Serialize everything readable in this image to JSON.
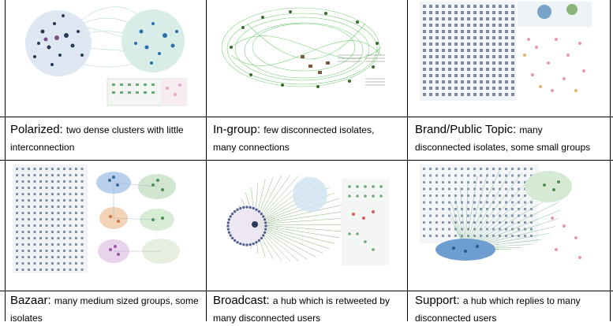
{
  "panels": [
    {
      "id": "polarized",
      "label": "Polarized:",
      "line1": "two dense clusters with little",
      "line2": "interconnection"
    },
    {
      "id": "in-group",
      "label": "In-group:",
      "line1": "few disconnected isolates,",
      "line2": "many connections"
    },
    {
      "id": "brand",
      "label": "Brand/Public Topic:",
      "line1": "many",
      "line2": "disconnected isolates, some small groups"
    },
    {
      "id": "bazaar",
      "label": "Bazaar:",
      "line1": "many medium sized groups, some",
      "line2": "isolates"
    },
    {
      "id": "broadcast",
      "label": "Broadcast:",
      "line1": "a hub which is retweeted by",
      "line2": "many disconnected users"
    },
    {
      "id": "support",
      "label": "Support:",
      "line1": "a hub which replies to many",
      "line2": "disconnected users"
    }
  ],
  "colors": {
    "cluster_blue": "#3b7fc4",
    "cluster_green": "#2e9d3a",
    "edge_green": "#6cc46a",
    "edge_teal": "#6fb8b0",
    "node_grey": "#9aa7b8",
    "node_dark": "#2a3a55",
    "pink": "#e8a6c8",
    "orange": "#e8b070"
  }
}
